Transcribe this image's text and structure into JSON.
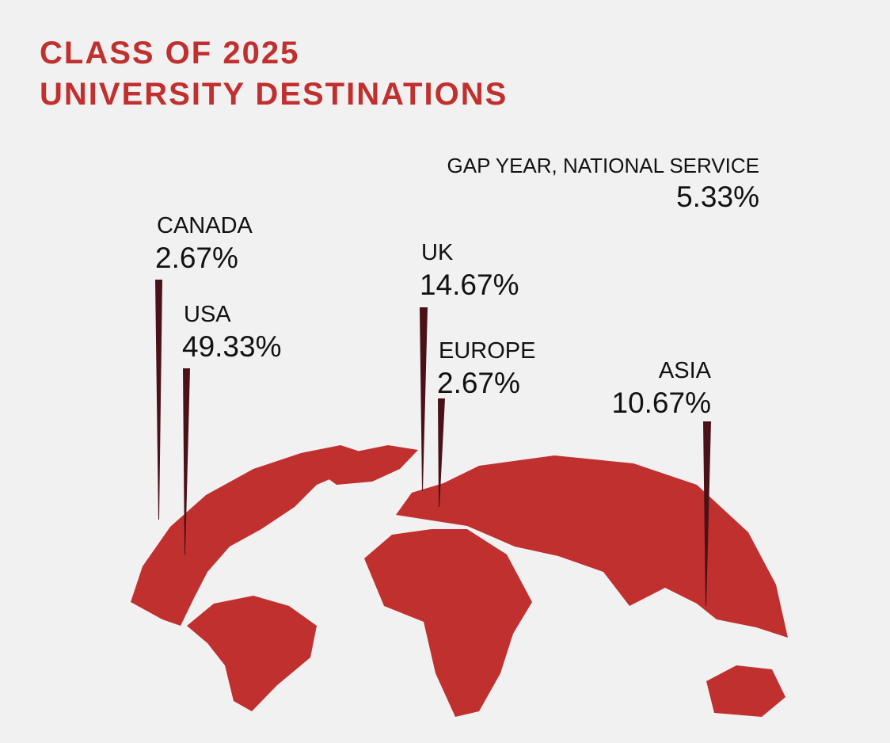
{
  "header": {
    "title_line_1": "CLASS OF 2025",
    "title_line_2": "UNIVERSITY DESTINATIONS"
  },
  "destinations": [
    {
      "name": "CANADA",
      "share": "2.67%"
    },
    {
      "name": "USA",
      "share": "49.33%"
    },
    {
      "name": "UK",
      "share": "14.67%"
    },
    {
      "name": "EUROPE",
      "share": "2.67%"
    },
    {
      "name": "ASIA",
      "share": "10.67%"
    },
    {
      "name": "GAP YEAR, NATIONAL SERVICE",
      "share": "5.33%"
    }
  ]
}
